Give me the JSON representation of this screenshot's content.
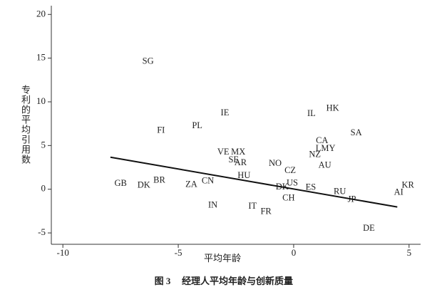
{
  "chart_data": {
    "type": "scatter",
    "x_label": "平均年龄",
    "y_label": "专利的平均引用数",
    "xlim": [
      -10.5,
      5.5
    ],
    "ylim": [
      -6.3,
      21
    ],
    "xticks": [
      -10,
      -5,
      0,
      5
    ],
    "yticks": [
      -5,
      0,
      5,
      10,
      15,
      20
    ],
    "points": [
      {
        "label": "SG",
        "x": -6.31,
        "y": 14.6
      },
      {
        "label": "IE",
        "x": -2.98,
        "y": 8.7
      },
      {
        "label": "FI",
        "x": -5.75,
        "y": 6.7
      },
      {
        "label": "PL",
        "x": -4.18,
        "y": 7.2
      },
      {
        "label": "IL",
        "x": 0.77,
        "y": 8.6
      },
      {
        "label": "HK",
        "x": 1.69,
        "y": 9.2
      },
      {
        "label": "SA",
        "x": 2.71,
        "y": 6.4
      },
      {
        "label": "CA",
        "x": 1.23,
        "y": 5.5
      },
      {
        "label": "LMY",
        "x": 1.38,
        "y": 4.6
      },
      {
        "label": "NZ",
        "x": 0.92,
        "y": 3.9
      },
      {
        "label": "AU",
        "x": 1.35,
        "y": 2.7
      },
      {
        "label": "VE",
        "x": -3.05,
        "y": 4.2
      },
      {
        "label": "MX",
        "x": -2.4,
        "y": 4.2
      },
      {
        "label": "SE",
        "x": -2.6,
        "y": 3.3
      },
      {
        "label": "AR",
        "x": -2.3,
        "y": 3.0
      },
      {
        "label": "NO",
        "x": -0.8,
        "y": 2.9
      },
      {
        "label": "CZ",
        "x": -0.15,
        "y": 2.1
      },
      {
        "label": "HU",
        "x": -2.15,
        "y": 1.5
      },
      {
        "label": "CN",
        "x": -3.72,
        "y": 0.9
      },
      {
        "label": "ZA",
        "x": -4.43,
        "y": 0.5
      },
      {
        "label": "BR",
        "x": -5.82,
        "y": 1.0
      },
      {
        "label": "DK",
        "x": -6.49,
        "y": 0.4
      },
      {
        "label": "GB",
        "x": -7.5,
        "y": 0.6
      },
      {
        "label": "DK",
        "x": -0.5,
        "y": 0.2
      },
      {
        "label": "US",
        "x": -0.06,
        "y": 0.65
      },
      {
        "label": "ES",
        "x": 0.74,
        "y": 0.16
      },
      {
        "label": "CH",
        "x": -0.22,
        "y": -1.06
      },
      {
        "label": "IN",
        "x": -3.5,
        "y": -1.87
      },
      {
        "label": "IT",
        "x": -1.78,
        "y": -2.0
      },
      {
        "label": "FR",
        "x": -1.2,
        "y": -2.6
      },
      {
        "label": "RU",
        "x": 2.0,
        "y": -0.33
      },
      {
        "label": "JP",
        "x": 2.52,
        "y": -1.2
      },
      {
        "label": "AI",
        "x": 4.55,
        "y": -0.4
      },
      {
        "label": "KR",
        "x": 4.95,
        "y": 0.4
      },
      {
        "label": "DE",
        "x": 3.26,
        "y": -4.5
      }
    ],
    "trend_line": {
      "x": [
        -7.94,
        4.49
      ],
      "y": [
        3.66,
        -2.03
      ],
      "color": "#111"
    }
  },
  "caption": {
    "figure": "图 3",
    "text": "经理人平均年龄与创新质量"
  }
}
